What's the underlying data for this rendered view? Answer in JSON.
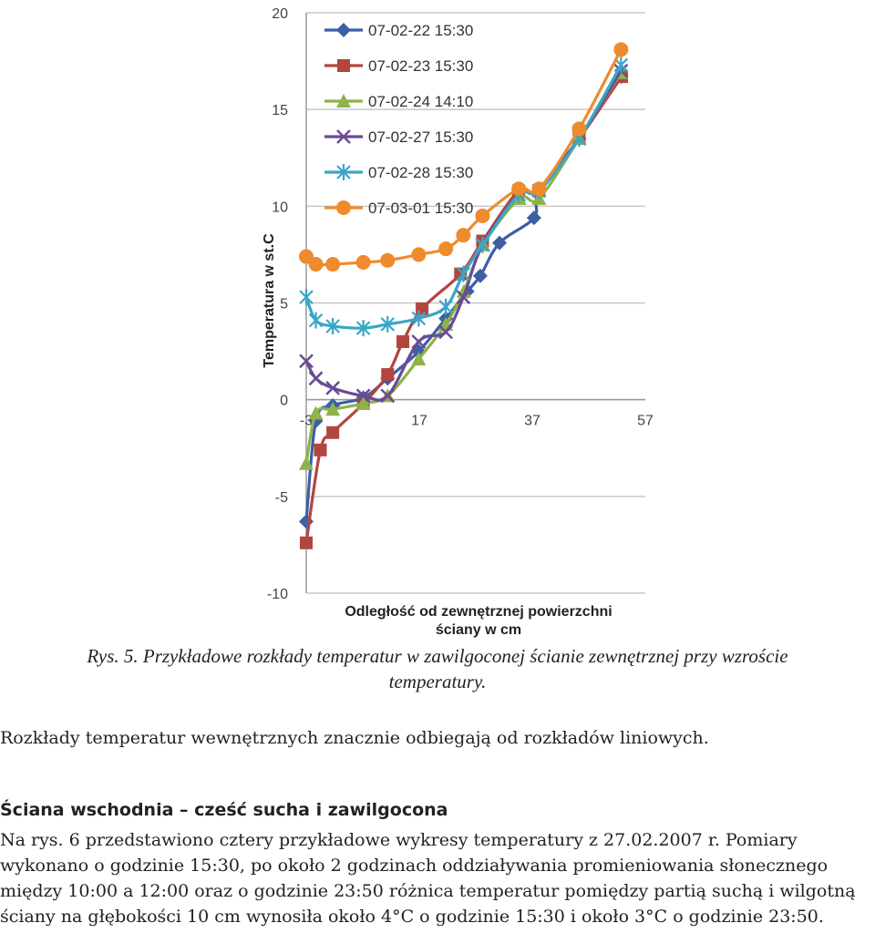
{
  "chart_data": {
    "type": "line",
    "xlabel": "Odległość od zewnętrznej powierzchni",
    "xlabel2": "ściany w cm",
    "ylabel": "Temperatura w st.C",
    "xlim": [
      -3,
      57
    ],
    "ylim": [
      -10,
      20
    ],
    "x_ticks": [
      "-3",
      "17",
      "37",
      "57"
    ],
    "y_ticks": [
      "20",
      "15",
      "10",
      "5",
      "0",
      "-5",
      "-10"
    ],
    "grid": true,
    "legend_position": "top-left",
    "series": [
      {
        "name": "07-02-22 15:30",
        "color": "#3c5fa5",
        "marker": "diamond",
        "x": [
          -3,
          -1.3,
          1.7,
          7.1,
          11.4,
          16.9,
          21.7,
          25.5,
          27.8,
          31.2,
          37.3,
          38.2,
          45.3,
          52.7
        ],
        "y": [
          -6.3,
          -1.1,
          -0.3,
          0.1,
          1.1,
          2.5,
          4.2,
          5.6,
          6.4,
          8.1,
          9.4,
          10.8,
          13.5,
          16.7
        ]
      },
      {
        "name": "07-02-23 15:30",
        "color": "#b3453f",
        "marker": "square",
        "x": [
          -3,
          -0.5,
          1.7,
          7.1,
          11.4,
          14.1,
          17.5,
          24.3,
          28.2,
          34.6,
          38.2,
          45.3,
          52.8
        ],
        "y": [
          -7.4,
          -2.6,
          -1.7,
          -0.2,
          1.3,
          3.0,
          4.7,
          6.5,
          8.2,
          10.8,
          10.8,
          13.5,
          16.7
        ]
      },
      {
        "name": "07-02-24 14:10",
        "color": "#8fb24a",
        "marker": "triangle",
        "x": [
          -3,
          -1.3,
          1.7,
          7.1,
          11.4,
          16.9,
          21.7,
          24.9,
          28.3,
          34.7,
          38.2,
          45.3,
          52.7
        ],
        "y": [
          -3.3,
          -0.7,
          -0.5,
          -0.2,
          0.2,
          2.1,
          3.9,
          5.6,
          8.0,
          10.4,
          10.4,
          13.5,
          16.9
        ]
      },
      {
        "name": "07-02-27 15:30",
        "color": "#6b4a94",
        "marker": "x",
        "x": [
          -3,
          -1.3,
          1.7,
          7.1,
          11.4,
          16.9,
          21.7,
          24.8,
          28.2,
          34.6,
          38.2,
          45.3,
          52.7
        ],
        "y": [
          2.0,
          1.1,
          0.6,
          0.2,
          0.2,
          3.0,
          3.5,
          5.3,
          8.0,
          10.6,
          10.8,
          13.5,
          17.0
        ]
      },
      {
        "name": "07-02-28 15:30",
        "color": "#3aa6c7",
        "marker": "star",
        "x": [
          -3,
          -1.3,
          1.7,
          7.1,
          11.4,
          16.9,
          21.7,
          24.8,
          28.2,
          34.6,
          38.2,
          45.3,
          52.7
        ],
        "y": [
          5.3,
          4.1,
          3.8,
          3.7,
          3.9,
          4.2,
          4.8,
          6.5,
          8.0,
          10.6,
          10.8,
          13.5,
          17.3
        ]
      },
      {
        "name": "07-03-01 15:30",
        "color": "#ef8b2d",
        "marker": "circle",
        "x": [
          -3,
          -1.3,
          1.7,
          7.1,
          11.4,
          16.9,
          21.7,
          24.8,
          28.2,
          34.6,
          38.2,
          45.3,
          52.7
        ],
        "y": [
          7.4,
          7.0,
          7.0,
          7.1,
          7.2,
          7.5,
          7.8,
          8.5,
          9.5,
          10.9,
          10.9,
          14.0,
          18.1
        ]
      }
    ]
  },
  "caption": {
    "line1": "Rys. 5. Przykładowe rozkłady temperatur w zawilgoconej ścianie zewnętrznej przy wzroście",
    "line2": "temperatury."
  },
  "paragraph1": "Rozkłady temperatur wewnętrznych znacznie odbiegają od rozkładów liniowych.",
  "heading": "Ściana wschodnia – cześć sucha i zawilgocona",
  "paragraph2": {
    "line1": "Na rys. 6 przedstawiono cztery przykładowe wykresy temperatury z 27.02.2007 r. Pomiary",
    "line2": "wykonano o godzinie 15:30, po około 2 godzinach oddziaływania promieniowania słonecznego",
    "line3": "między 10:00 a 12:00 oraz o godzinie 23:50 różnica temperatur pomiędzy partią suchą i wilgotną",
    "line4": "ściany na głębokości 10 cm wynosiła około 4°C o godzinie 15:30 i około 3°C o godzinie 23:50."
  }
}
